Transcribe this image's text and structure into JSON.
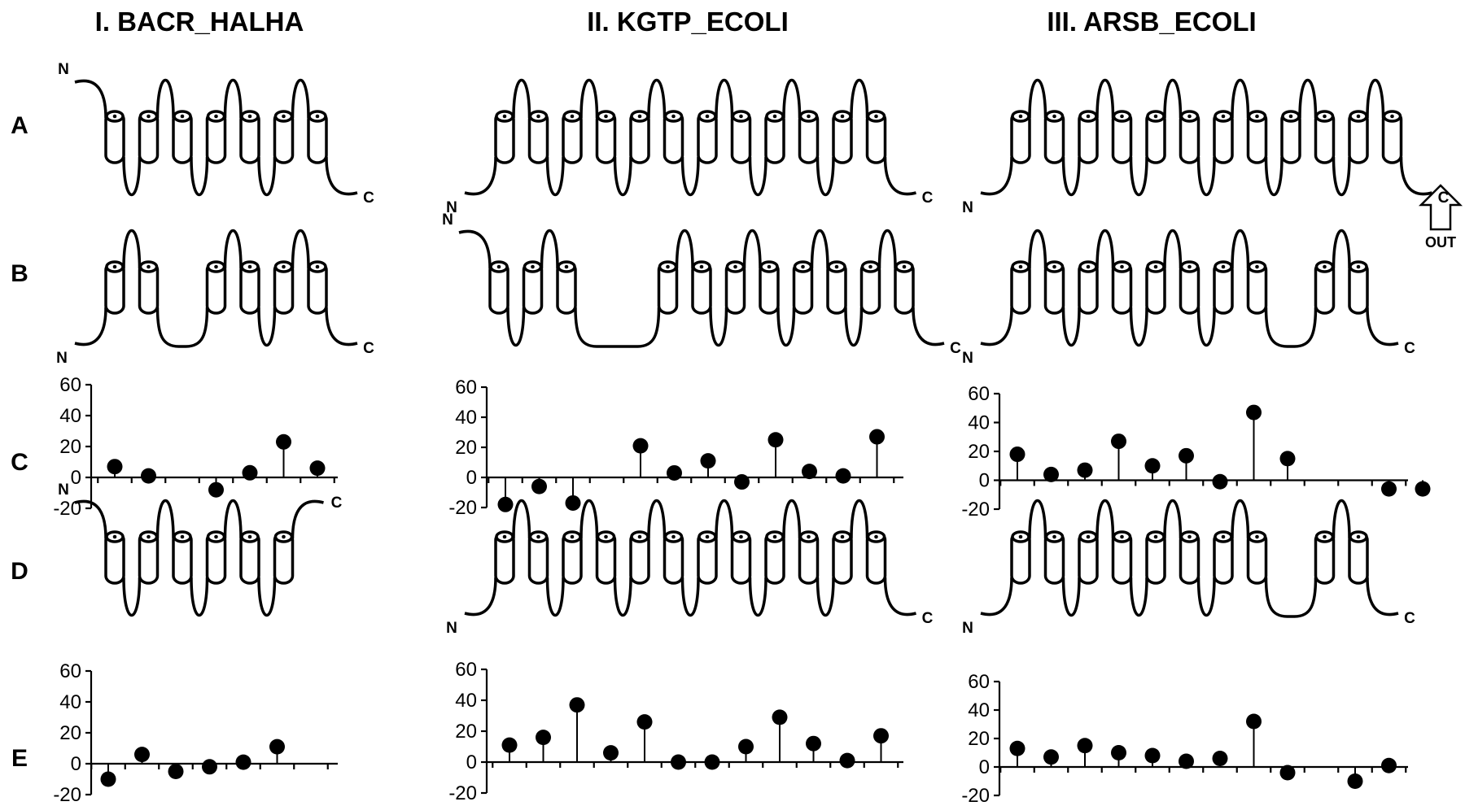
{
  "columns": [
    {
      "title": "I. BACR_HALHA"
    },
    {
      "title": "II. KGTP_ECOLI"
    },
    {
      "title": "III. ARSB_ECOLI"
    }
  ],
  "rows": [
    "A",
    "B",
    "C",
    "D",
    "E"
  ],
  "terminal_labels": {
    "n": "N",
    "c": "C"
  },
  "orientation_arrow": {
    "label": "OUT"
  },
  "topology_diagrams": [
    {
      "column": 0,
      "row": "A",
      "helices": [
        0,
        1,
        2,
        3,
        4,
        5,
        6
      ],
      "n_side": "out"
    },
    {
      "column": 0,
      "row": "B",
      "helices": [
        0,
        1,
        3,
        4,
        5,
        6
      ],
      "n_side": "in"
    },
    {
      "column": 0,
      "row": "D",
      "helices": [
        0,
        1,
        2,
        3,
        4,
        5
      ],
      "n_side": "out"
    },
    {
      "column": 1,
      "row": "A",
      "helices": [
        0,
        1,
        2,
        3,
        4,
        5,
        6,
        7,
        8,
        9,
        10,
        11
      ],
      "n_side": "in"
    },
    {
      "column": 1,
      "row": "B",
      "helices": [
        0,
        1,
        2,
        5,
        6,
        7,
        8,
        9,
        10,
        11,
        12
      ],
      "n_side": "out"
    },
    {
      "column": 1,
      "row": "D",
      "helices": [
        0,
        1,
        2,
        3,
        4,
        5,
        6,
        7,
        8,
        9,
        10,
        11
      ],
      "n_side": "in"
    },
    {
      "column": 2,
      "row": "A",
      "helices": [
        0,
        1,
        2,
        3,
        4,
        5,
        6,
        7,
        8,
        9,
        10,
        11
      ],
      "n_side": "in"
    },
    {
      "column": 2,
      "row": "B",
      "helices": [
        0,
        1,
        2,
        3,
        4,
        5,
        6,
        7,
        9,
        10
      ],
      "n_side": "in"
    },
    {
      "column": 2,
      "row": "D",
      "helices": [
        0,
        1,
        2,
        3,
        4,
        5,
        6,
        7,
        9,
        10
      ],
      "n_side": "in"
    }
  ],
  "chart_data": [
    {
      "type": "stem",
      "column": 0,
      "row": "C",
      "ylim": [
        -20,
        60
      ],
      "yticks": [
        60,
        40,
        20,
        0,
        -20
      ],
      "x": [
        1,
        2,
        3,
        4,
        5,
        6,
        7
      ],
      "values": [
        7,
        1,
        null,
        -8,
        3,
        23,
        6
      ]
    },
    {
      "type": "stem",
      "column": 0,
      "row": "E",
      "ylim": [
        -20,
        60
      ],
      "yticks": [
        60,
        40,
        20,
        0,
        -20
      ],
      "x": [
        1,
        2,
        3,
        4,
        5,
        6,
        7
      ],
      "values": [
        -10,
        6,
        -5,
        -2,
        1,
        11,
        null
      ]
    },
    {
      "type": "stem",
      "column": 1,
      "row": "C",
      "ylim": [
        -20,
        60
      ],
      "yticks": [
        60,
        40,
        20,
        0,
        -20
      ],
      "x": [
        1,
        2,
        3,
        4,
        5,
        6,
        7,
        8,
        9,
        10,
        11,
        12,
        13
      ],
      "values": [
        -18,
        -6,
        -17,
        null,
        21,
        3,
        11,
        -3,
        25,
        4,
        1,
        27,
        null
      ]
    },
    {
      "type": "stem",
      "column": 1,
      "row": "E",
      "ylim": [
        -20,
        60
      ],
      "yticks": [
        60,
        40,
        20,
        0,
        -20
      ],
      "x": [
        1,
        2,
        3,
        4,
        5,
        6,
        7,
        8,
        9,
        10,
        11,
        12
      ],
      "values": [
        11,
        16,
        37,
        6,
        26,
        0,
        0,
        10,
        29,
        12,
        1,
        17
      ]
    },
    {
      "type": "stem",
      "column": 2,
      "row": "C",
      "ylim": [
        -20,
        60
      ],
      "yticks": [
        60,
        40,
        20,
        0,
        -20
      ],
      "x": [
        1,
        2,
        3,
        4,
        5,
        6,
        7,
        8,
        9,
        10,
        11,
        12,
        13
      ],
      "values": [
        18,
        4,
        7,
        27,
        10,
        17,
        -1,
        47,
        15,
        null,
        null,
        -6,
        -6
      ]
    },
    {
      "type": "stem",
      "column": 2,
      "row": "E",
      "ylim": [
        -20,
        60
      ],
      "yticks": [
        60,
        40,
        20,
        0,
        -20
      ],
      "x": [
        1,
        2,
        3,
        4,
        5,
        6,
        7,
        8,
        9,
        10,
        11,
        12,
        13
      ],
      "values": [
        13,
        7,
        15,
        10,
        8,
        4,
        6,
        32,
        -4,
        null,
        -10,
        1,
        null
      ]
    }
  ]
}
